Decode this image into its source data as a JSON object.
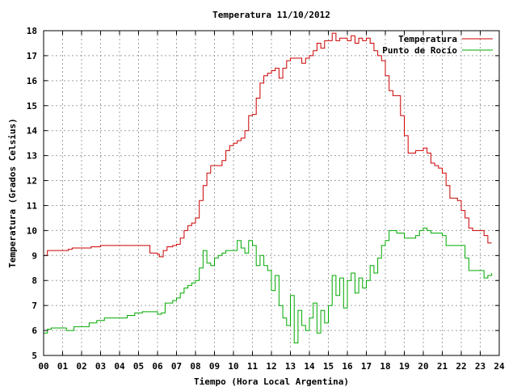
{
  "chart_data": {
    "type": "line",
    "title": "Temperatura 11/10/2012",
    "xlabel": "Tiempo (Hora Local Argentina)",
    "ylabel": "Temperatura (Grados Celsius)",
    "xlim": [
      0,
      24
    ],
    "ylim": [
      5,
      18
    ],
    "x_ticks": [
      0,
      1,
      2,
      3,
      4,
      5,
      6,
      7,
      8,
      9,
      10,
      11,
      12,
      13,
      14,
      15,
      16,
      17,
      18,
      19,
      20,
      21,
      22,
      23,
      24
    ],
    "x_tick_labels": [
      "00",
      "01",
      "02",
      "03",
      "04",
      "05",
      "06",
      "07",
      "08",
      "09",
      "10",
      "11",
      "12",
      "13",
      "14",
      "15",
      "16",
      "17",
      "18",
      "19",
      "20",
      "21",
      "22",
      "23",
      "24"
    ],
    "y_ticks": [
      5,
      6,
      7,
      8,
      9,
      10,
      11,
      12,
      13,
      14,
      15,
      16,
      17,
      18
    ],
    "y_tick_labels": [
      "5",
      "6",
      "7",
      "8",
      "9",
      "10",
      "11",
      "12",
      "13",
      "14",
      "15",
      "16",
      "17",
      "18"
    ],
    "grid": true,
    "legend_position": "top-right",
    "series": [
      {
        "name": "Temperatura",
        "color": "#cc0000",
        "x": [
          0.0,
          0.2,
          0.5,
          1.0,
          1.3,
          1.5,
          2.0,
          2.5,
          3.0,
          3.5,
          4.0,
          4.5,
          5.0,
          5.4,
          5.6,
          5.8,
          6.0,
          6.1,
          6.3,
          6.5,
          6.8,
          7.0,
          7.2,
          7.4,
          7.6,
          7.8,
          8.0,
          8.2,
          8.4,
          8.6,
          8.8,
          9.0,
          9.2,
          9.4,
          9.6,
          9.8,
          10.0,
          10.2,
          10.4,
          10.6,
          10.8,
          11.0,
          11.2,
          11.4,
          11.6,
          11.8,
          12.0,
          12.2,
          12.4,
          12.6,
          12.8,
          13.0,
          13.2,
          13.4,
          13.6,
          13.8,
          14.0,
          14.2,
          14.4,
          14.6,
          14.8,
          15.0,
          15.2,
          15.4,
          15.6,
          15.8,
          16.0,
          16.2,
          16.4,
          16.6,
          16.8,
          17.0,
          17.2,
          17.4,
          17.6,
          17.8,
          18.0,
          18.2,
          18.4,
          18.6,
          18.8,
          19.0,
          19.2,
          19.4,
          19.6,
          19.8,
          20.0,
          20.2,
          20.4,
          20.6,
          20.8,
          21.0,
          21.2,
          21.4,
          21.6,
          21.8,
          22.0,
          22.2,
          22.4,
          22.6,
          22.8,
          23.0,
          23.2,
          23.4,
          23.6
        ],
        "values": [
          9.0,
          9.2,
          9.2,
          9.2,
          9.25,
          9.3,
          9.3,
          9.35,
          9.4,
          9.4,
          9.4,
          9.4,
          9.4,
          9.4,
          9.1,
          9.1,
          9.05,
          8.95,
          9.2,
          9.35,
          9.4,
          9.45,
          9.7,
          10.0,
          10.2,
          10.3,
          10.5,
          11.2,
          11.8,
          12.3,
          12.6,
          12.6,
          12.6,
          12.8,
          13.2,
          13.4,
          13.5,
          13.6,
          13.7,
          14.0,
          14.6,
          14.65,
          15.3,
          15.9,
          16.2,
          16.3,
          16.4,
          16.5,
          16.1,
          16.5,
          16.8,
          16.9,
          16.9,
          16.9,
          16.7,
          16.9,
          17.0,
          17.2,
          17.5,
          17.3,
          17.6,
          17.6,
          17.9,
          17.6,
          17.7,
          17.7,
          17.6,
          17.8,
          17.5,
          17.7,
          17.6,
          17.7,
          17.5,
          17.2,
          17.0,
          16.8,
          16.2,
          15.6,
          15.4,
          15.4,
          14.6,
          13.8,
          13.1,
          13.1,
          13.2,
          13.2,
          13.3,
          13.1,
          12.7,
          12.6,
          12.5,
          12.3,
          11.8,
          11.3,
          11.3,
          11.2,
          10.8,
          10.5,
          10.1,
          10.0,
          10.0,
          10.0,
          9.8,
          9.5,
          9.5
        ]
      },
      {
        "name": "Punto de Rocío",
        "color": "#00aa00",
        "x": [
          0.0,
          0.2,
          0.4,
          0.8,
          1.2,
          1.6,
          2.0,
          2.4,
          2.8,
          3.2,
          3.6,
          4.0,
          4.4,
          4.8,
          5.2,
          5.6,
          6.0,
          6.2,
          6.4,
          6.8,
          7.0,
          7.2,
          7.4,
          7.6,
          7.8,
          8.0,
          8.2,
          8.4,
          8.6,
          8.8,
          9.0,
          9.2,
          9.4,
          9.6,
          9.8,
          10.0,
          10.2,
          10.4,
          10.6,
          10.8,
          11.0,
          11.2,
          11.4,
          11.6,
          11.8,
          12.0,
          12.2,
          12.4,
          12.6,
          12.8,
          13.0,
          13.2,
          13.4,
          13.6,
          13.8,
          14.0,
          14.2,
          14.4,
          14.6,
          14.8,
          15.0,
          15.2,
          15.4,
          15.6,
          15.8,
          16.0,
          16.2,
          16.4,
          16.6,
          16.8,
          17.0,
          17.2,
          17.4,
          17.6,
          17.8,
          18.0,
          18.2,
          18.4,
          18.6,
          18.8,
          19.0,
          19.2,
          19.4,
          19.6,
          19.8,
          20.0,
          20.2,
          20.4,
          20.6,
          20.8,
          21.0,
          21.2,
          21.4,
          21.6,
          21.8,
          22.0,
          22.2,
          22.4,
          22.6,
          22.8,
          23.0,
          23.2,
          23.4,
          23.6
        ],
        "values": [
          5.9,
          6.05,
          6.1,
          6.1,
          6.0,
          6.15,
          6.15,
          6.3,
          6.4,
          6.5,
          6.5,
          6.5,
          6.6,
          6.7,
          6.75,
          6.75,
          6.65,
          6.7,
          7.1,
          7.2,
          7.3,
          7.5,
          7.7,
          7.8,
          7.9,
          8.0,
          8.5,
          9.2,
          8.7,
          8.6,
          8.9,
          9.0,
          9.1,
          9.2,
          9.2,
          9.2,
          9.6,
          9.3,
          9.1,
          9.6,
          9.4,
          8.6,
          9.0,
          8.6,
          8.4,
          7.6,
          8.2,
          7.0,
          6.5,
          6.2,
          7.4,
          5.5,
          6.8,
          6.2,
          6.0,
          6.5,
          7.1,
          5.9,
          6.8,
          6.3,
          7.0,
          8.2,
          7.4,
          8.1,
          6.9,
          8.0,
          8.3,
          7.5,
          8.1,
          7.7,
          8.0,
          8.6,
          8.3,
          8.9,
          9.4,
          9.6,
          10.0,
          10.0,
          9.9,
          9.9,
          9.7,
          9.7,
          9.7,
          9.8,
          10.0,
          10.1,
          10.0,
          9.9,
          9.9,
          9.9,
          9.8,
          9.4,
          9.4,
          9.4,
          9.4,
          9.4,
          8.9,
          8.4,
          8.4,
          8.4,
          8.4,
          8.1,
          8.2,
          8.3
        ]
      }
    ]
  }
}
